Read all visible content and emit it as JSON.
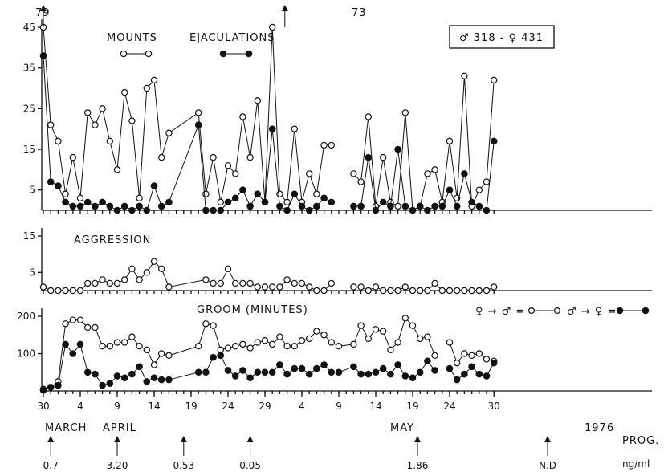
{
  "chart_data": [
    {
      "type": "line",
      "panel": "mounts-ejaculations",
      "title": "",
      "legend": [
        "MOUNTS",
        "EJACULATIONS"
      ],
      "pair_label": "♂ 318 - ♀ 431",
      "ylim": [
        0,
        45
      ],
      "yticks": [
        "45",
        "35",
        "25",
        "15",
        "5"
      ],
      "clipped_labels": [
        "79",
        "73"
      ],
      "x": [
        30,
        31,
        32,
        33,
        34,
        35,
        36,
        37,
        38,
        39,
        40,
        41,
        42,
        43,
        44,
        45,
        46,
        47,
        51,
        52,
        53,
        54,
        55,
        56,
        57,
        58,
        59,
        60,
        61,
        62,
        63,
        64,
        65,
        66,
        67,
        68,
        69,
        70,
        72,
        73,
        74,
        75,
        76,
        77,
        78,
        79,
        80,
        81,
        82,
        83,
        84,
        85,
        86,
        87,
        88,
        89,
        90,
        91
      ],
      "series": [
        {
          "name": "MOUNTS",
          "values": [
            45,
            21,
            17,
            4,
            13,
            3,
            24,
            21,
            25,
            17,
            10,
            29,
            22,
            3,
            30,
            32,
            13,
            19,
            24,
            4,
            13,
            2,
            11,
            9,
            23,
            13,
            27,
            2,
            45,
            4,
            2,
            20,
            2,
            9,
            4,
            16,
            16,
            null,
            9,
            7,
            23,
            1,
            13,
            2,
            1,
            24,
            0,
            1,
            9,
            10,
            2,
            17,
            3,
            33,
            1,
            5,
            7,
            32
          ]
        },
        {
          "name": "EJACULATIONS",
          "values": [
            38,
            7,
            6,
            2,
            1,
            1,
            2,
            1,
            2,
            1,
            0,
            1,
            0,
            1,
            0,
            6,
            1,
            2,
            21,
            0,
            0,
            0,
            2,
            3,
            5,
            1,
            4,
            2,
            20,
            1,
            0,
            4,
            1,
            0,
            1,
            3,
            2,
            null,
            1,
            1,
            13,
            0,
            2,
            1,
            15,
            1,
            0,
            1,
            0,
            1,
            1,
            5,
            1,
            9,
            2,
            1,
            0,
            17
          ]
        }
      ]
    },
    {
      "type": "line",
      "panel": "aggression",
      "title": "AGGRESSION",
      "ylim": [
        0,
        15
      ],
      "yticks": [
        "15",
        "5"
      ],
      "x": [
        30,
        31,
        32,
        33,
        34,
        35,
        36,
        37,
        38,
        39,
        40,
        41,
        42,
        43,
        44,
        45,
        46,
        47,
        52,
        53,
        54,
        55,
        56,
        57,
        58,
        59,
        60,
        61,
        62,
        63,
        64,
        65,
        66,
        67,
        68,
        69,
        70,
        72,
        73,
        74,
        75,
        76,
        77,
        78,
        79,
        80,
        81,
        82,
        83,
        84,
        85,
        86,
        87,
        88,
        89,
        90,
        91
      ],
      "values": [
        1,
        0,
        0,
        0,
        0,
        0,
        2,
        2,
        3,
        2,
        2,
        3,
        6,
        3,
        5,
        8,
        6,
        1,
        3,
        2,
        2,
        6,
        2,
        2,
        2,
        1,
        1,
        1,
        1,
        3,
        2,
        2,
        1,
        0,
        0,
        2,
        null,
        1,
        1,
        0,
        1,
        0,
        0,
        0,
        1,
        0,
        0,
        0,
        2,
        0,
        0,
        0,
        0,
        0,
        0,
        0,
        1
      ]
    },
    {
      "type": "line",
      "panel": "groom",
      "title": "GROOM (MINUTES)",
      "ylim": [
        0,
        200
      ],
      "yticks": [
        "200",
        "100"
      ],
      "legend": [
        "♀ → ♂ =",
        "♂ → ♀ ="
      ],
      "x": [
        30,
        31,
        32,
        33,
        34,
        35,
        36,
        37,
        38,
        39,
        40,
        41,
        42,
        43,
        44,
        45,
        46,
        47,
        51,
        52,
        53,
        54,
        55,
        56,
        57,
        58,
        59,
        60,
        61,
        62,
        63,
        64,
        65,
        66,
        67,
        68,
        69,
        70,
        72,
        73,
        74,
        75,
        76,
        77,
        78,
        79,
        80,
        81,
        82,
        83,
        84,
        85,
        86,
        87,
        88,
        89,
        90,
        91
      ],
      "series": [
        {
          "name": "♀ → ♂",
          "values": [
            5,
            10,
            25,
            180,
            190,
            190,
            170,
            170,
            120,
            120,
            130,
            130,
            145,
            120,
            110,
            70,
            100,
            95,
            120,
            180,
            175,
            110,
            115,
            120,
            125,
            115,
            130,
            135,
            125,
            145,
            120,
            120,
            135,
            140,
            160,
            150,
            130,
            120,
            125,
            175,
            140,
            165,
            160,
            110,
            130,
            195,
            175,
            140,
            145,
            95,
            null,
            130,
            75,
            100,
            95,
            100,
            85,
            80
          ]
        },
        {
          "name": "♂ → ♀",
          "values": [
            2,
            10,
            15,
            125,
            100,
            125,
            50,
            45,
            15,
            20,
            40,
            35,
            45,
            65,
            25,
            35,
            30,
            30,
            50,
            50,
            90,
            95,
            55,
            40,
            55,
            35,
            50,
            50,
            50,
            70,
            45,
            60,
            60,
            45,
            60,
            70,
            50,
            50,
            65,
            45,
            45,
            50,
            60,
            45,
            70,
            40,
            35,
            50,
            80,
            55,
            null,
            60,
            30,
            45,
            65,
            45,
            40,
            75
          ]
        }
      ]
    }
  ],
  "x_axis": {
    "tick_labels": [
      "30",
      "4",
      "9",
      "14",
      "19",
      "24",
      "29",
      "4",
      "9",
      "14",
      "19",
      "24",
      "30"
    ],
    "months": [
      "MARCH",
      "APRIL",
      "MAY",
      "1976"
    ]
  },
  "progesterone": {
    "label": "PROG.",
    "unit": "ng/ml",
    "values": [
      "0.7",
      "3.20",
      "0.53",
      "0.05",
      "1.86",
      "N.D"
    ]
  }
}
